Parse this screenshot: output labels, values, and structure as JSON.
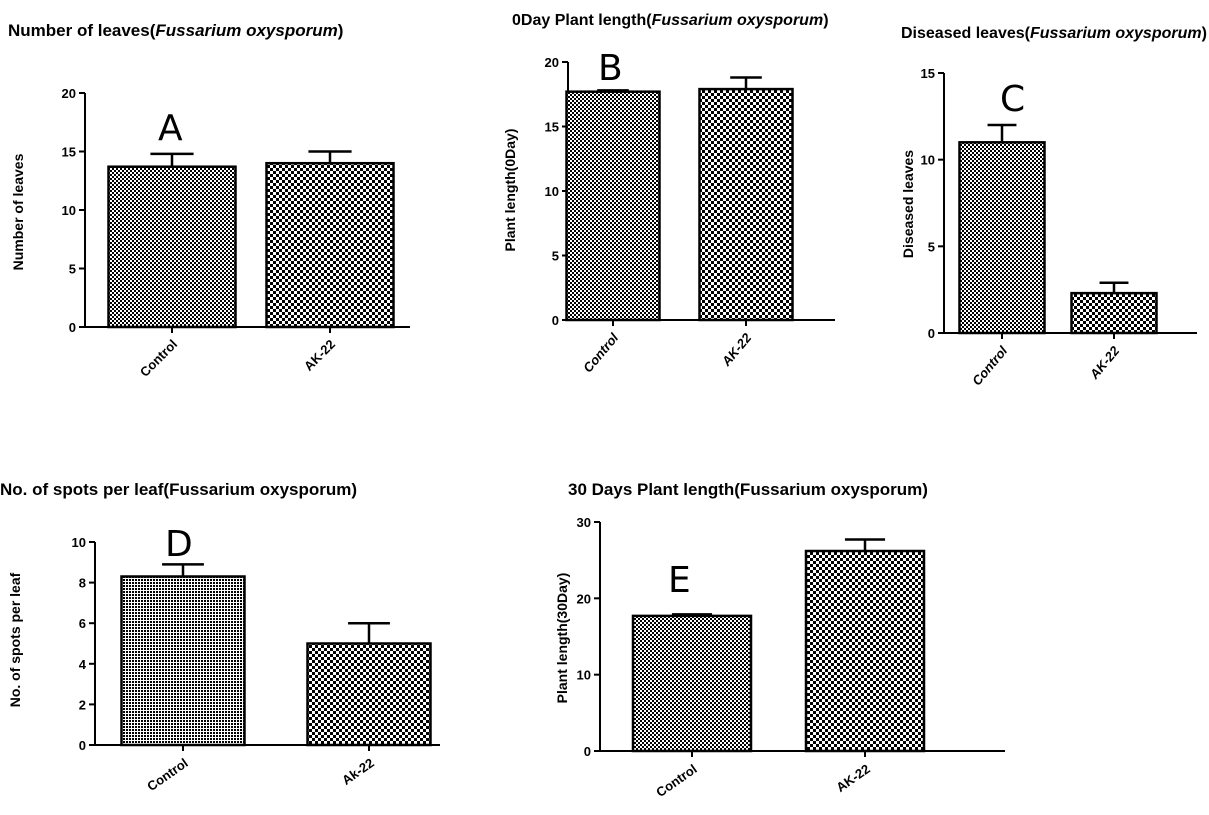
{
  "chart_data": [
    {
      "type": "bar",
      "panel": "A",
      "title": "Number of leaves(",
      "title_italic": "Fussarium oxysporum",
      "title_end": ")",
      "ylabel": "Number of leaves",
      "categories": [
        "Control",
        "AK-22"
      ],
      "values": [
        13.7,
        14.0
      ],
      "errors": [
        1.1,
        1.0
      ],
      "ylim": [
        0,
        20
      ],
      "yticks": [
        "0",
        "5",
        "10",
        "15",
        "20"
      ],
      "grid": false,
      "legend": "none"
    },
    {
      "type": "bar",
      "panel": "B",
      "title": "0Day Plant length(",
      "title_italic": "Fussarium oxysporum",
      "title_end": ")",
      "ylabel": "Plant length(0Day)",
      "categories": [
        "Control",
        "AK-22"
      ],
      "values": [
        17.7,
        17.9
      ],
      "errors": [
        0.1,
        0.9
      ],
      "ylim": [
        0,
        20
      ],
      "yticks": [
        "0",
        "5",
        "10",
        "15",
        "20"
      ],
      "grid": false,
      "legend": "none"
    },
    {
      "type": "bar",
      "panel": "C",
      "title": "Diseased leaves(",
      "title_italic": "Fussarium oxysporum",
      "title_end": ")",
      "ylabel": "Diseased leaves",
      "categories": [
        "Control",
        "AK-22"
      ],
      "values": [
        11.0,
        2.3
      ],
      "errors": [
        1.0,
        0.6
      ],
      "ylim": [
        0,
        15
      ],
      "yticks": [
        "0",
        "5",
        "10",
        "15"
      ],
      "grid": false,
      "legend": "none"
    },
    {
      "type": "bar",
      "panel": "D",
      "title": "No. of spots per leaf(Fussarium oxysporum)",
      "ylabel": "No. of spots per leaf",
      "categories": [
        "Control",
        "Ak-22"
      ],
      "values": [
        8.3,
        5.0
      ],
      "errors": [
        0.6,
        1.0
      ],
      "ylim": [
        0,
        10
      ],
      "yticks": [
        "0",
        "2",
        "4",
        "6",
        "8",
        "10"
      ],
      "grid": false,
      "legend": "none"
    },
    {
      "type": "bar",
      "panel": "E",
      "title": "30 Days Plant length(Fussarium oxysporum)",
      "ylabel": "Plant length(30Day)",
      "categories": [
        "Control",
        "AK-22"
      ],
      "values": [
        17.7,
        26.2
      ],
      "errors": [
        0.2,
        1.5
      ],
      "ylim": [
        0,
        30
      ],
      "yticks": [
        "0",
        "10",
        "20",
        "30"
      ],
      "grid": false,
      "legend": "none"
    }
  ]
}
